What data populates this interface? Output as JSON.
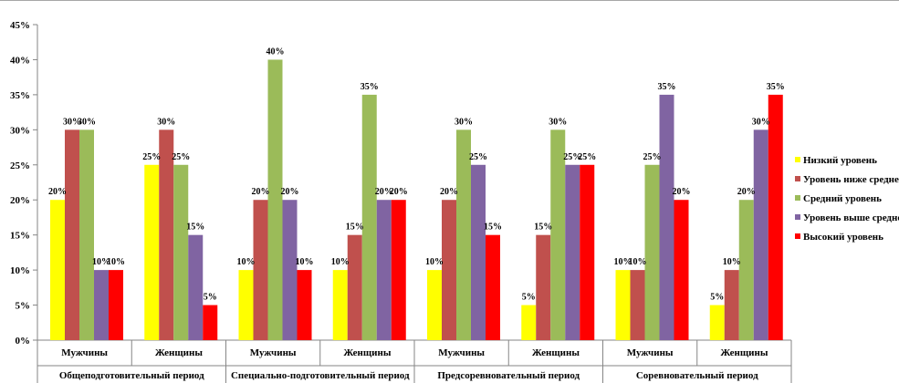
{
  "chart_data": {
    "type": "bar",
    "title": "",
    "xlabel": "",
    "ylabel": "",
    "ylim": [
      0,
      45
    ],
    "y_ticks": [
      "0%",
      "5%",
      "10%",
      "15%",
      "20%",
      "25%",
      "30%",
      "35%",
      "40%",
      "45%"
    ],
    "y_tick_values": [
      0,
      5,
      10,
      15,
      20,
      25,
      30,
      35,
      40,
      45
    ],
    "grid": false,
    "legend_position": "right",
    "categories": [
      "Мужчины",
      "Женщины",
      "Мужчины",
      "Женщины",
      "Мужчины",
      "Женщины",
      "Мужчины",
      "Женщины"
    ],
    "groups": [
      {
        "label": "Общеподготовительный период",
        "span": 2
      },
      {
        "label": "Специально-подготовительный период",
        "span": 2
      },
      {
        "label": "Предсоревновательный период",
        "span": 2
      },
      {
        "label": "Соревновательный период",
        "span": 2
      }
    ],
    "series": [
      {
        "name": "Низкий уровень",
        "color": "#ffff00",
        "values": [
          20,
          25,
          10,
          10,
          10,
          5,
          10,
          5
        ]
      },
      {
        "name": "Уровень ниже среднего",
        "color": "#c0504d",
        "values": [
          30,
          30,
          20,
          15,
          20,
          15,
          10,
          10
        ]
      },
      {
        "name": "Средний уровень",
        "color": "#9bbb59",
        "values": [
          30,
          25,
          40,
          35,
          30,
          30,
          25,
          20
        ]
      },
      {
        "name": "Уровень выше среднего",
        "color": "#8064a2",
        "values": [
          10,
          15,
          20,
          20,
          25,
          25,
          35,
          30
        ]
      },
      {
        "name": "Высокий уровень",
        "color": "#ff0000",
        "values": [
          10,
          5,
          10,
          20,
          15,
          25,
          20,
          35
        ]
      }
    ],
    "value_suffix": "%"
  }
}
